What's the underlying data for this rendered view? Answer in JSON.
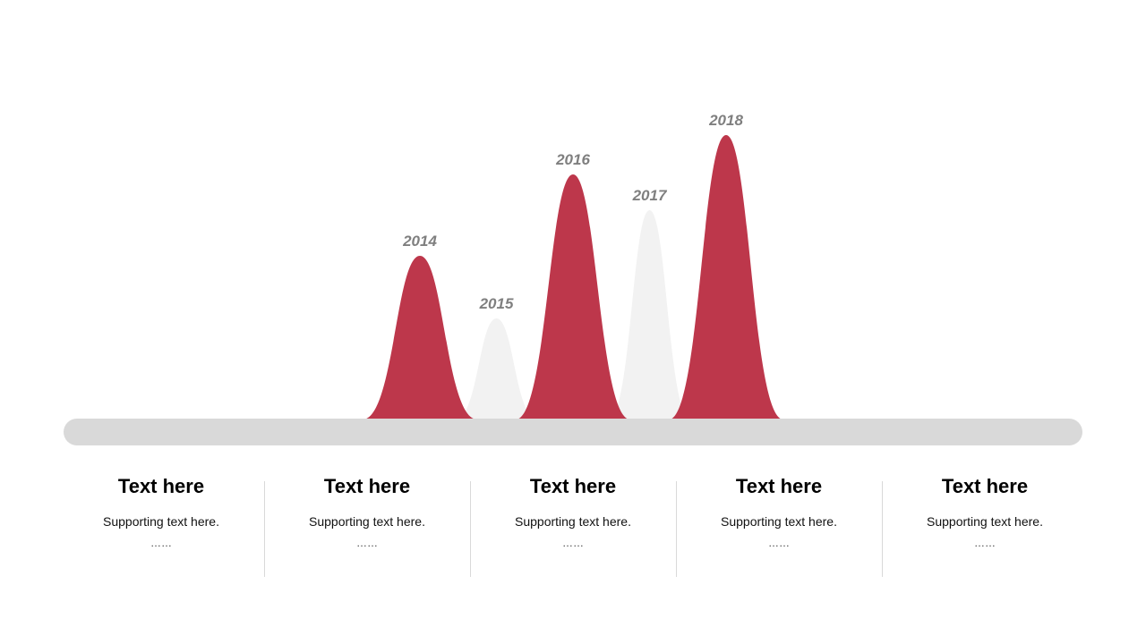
{
  "chart_data": {
    "type": "area",
    "categories": [
      "2014",
      "2015",
      "2016",
      "2017",
      "2018"
    ],
    "values": [
      183,
      113,
      274,
      234,
      318
    ],
    "highlighted": [
      true,
      false,
      true,
      false,
      true
    ],
    "title": "",
    "xlabel": "",
    "ylabel": "",
    "grid": false,
    "colors": {
      "highlight": "#bd374b",
      "muted": "#f2f2f2",
      "baseline": "#d9d9d9",
      "label": "#7f7f7f"
    }
  },
  "columns": [
    {
      "title": "Text here",
      "subtitle": "Supporting text here.",
      "dots": "……"
    },
    {
      "title": "Text here",
      "subtitle": "Supporting text here.",
      "dots": "……"
    },
    {
      "title": "Text here",
      "subtitle": "Supporting text here.",
      "dots": "……"
    },
    {
      "title": "Text here",
      "subtitle": "Supporting text here.",
      "dots": "……"
    },
    {
      "title": "Text here",
      "subtitle": "Supporting text here.",
      "dots": "……"
    }
  ]
}
